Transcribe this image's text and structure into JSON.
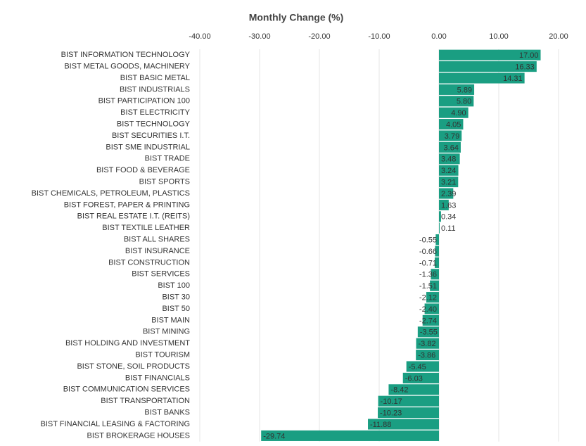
{
  "chart_data": {
    "type": "hbar",
    "title": "Monthly Change (%)",
    "color": "#1a9e82",
    "grid": true,
    "xlim": [
      -40,
      20
    ],
    "xticks": [
      {
        "value": -40,
        "label": "-40.00"
      },
      {
        "value": -30,
        "label": "-30.00"
      },
      {
        "value": -20,
        "label": "-20.00"
      },
      {
        "value": -10,
        "label": "-10.00"
      },
      {
        "value": 0,
        "label": "0.00"
      },
      {
        "value": 10,
        "label": "10.00"
      },
      {
        "value": 20,
        "label": "20.00"
      }
    ],
    "categories": [
      "BIST INFORMATION TECHNOLOGY",
      "BIST METAL GOODS, MACHINERY",
      "BIST BASIC METAL",
      "BIST INDUSTRIALS",
      "BIST PARTICIPATION 100",
      "BIST ELECTRICITY",
      "BIST TECHNOLOGY",
      "BIST SECURITIES I.T.",
      "BIST SME INDUSTRIAL",
      "BIST TRADE",
      "BIST FOOD & BEVERAGE",
      "BIST SPORTS",
      "BIST CHEMICALS, PETROLEUM, PLASTICS",
      "BIST FOREST, PAPER & PRINTING",
      "BIST REAL ESTATE I.T.  (REITS)",
      "BIST TEXTILE LEATHER",
      "BIST ALL SHARES",
      "BIST INSURANCE",
      "BIST CONSTRUCTION",
      "BIST SERVICES",
      "BIST 100",
      "BIST 30",
      "BIST 50",
      "BIST MAIN",
      "BIST MINING",
      "BIST HOLDING AND INVESTMENT",
      "BIST TOURISM",
      "BIST STONE, SOIL PRODUCTS",
      "BIST FINANCIALS",
      "BIST COMMUNICATION SERVICES",
      "BIST TRANSPORTATION",
      "BIST BANKS",
      "BIST FINANCIAL LEASING & FACTORING",
      "BIST BROKERAGE HOUSES"
    ],
    "values": [
      17.0,
      16.33,
      14.31,
      5.89,
      5.8,
      4.9,
      4.05,
      3.79,
      3.64,
      3.48,
      3.24,
      3.21,
      2.39,
      1.63,
      0.34,
      0.11,
      -0.55,
      -0.66,
      -0.71,
      -1.36,
      -1.51,
      -2.12,
      -2.4,
      -2.74,
      -3.55,
      -3.82,
      -3.86,
      -5.45,
      -6.03,
      -8.42,
      -10.17,
      -10.23,
      -11.88,
      -29.74
    ],
    "value_labels": [
      "17.00",
      "16.33",
      "14.31",
      "5.89",
      "5.80",
      "4.90",
      "4.05",
      "3.79",
      "3.64",
      "3.48",
      "3.24",
      "3.21",
      "2.39",
      "1.63",
      "0.34",
      "0.11",
      "-0.55",
      "-0.66",
      "-0.71",
      "-1.36",
      "-1.51",
      "-2.12",
      "-2.40",
      "-2.74",
      "-3.55",
      "-3.82",
      "-3.86",
      "-5.45",
      "-6.03",
      "-8.42",
      "-10.17",
      "-10.23",
      "-11.88",
      "-29.74"
    ]
  }
}
